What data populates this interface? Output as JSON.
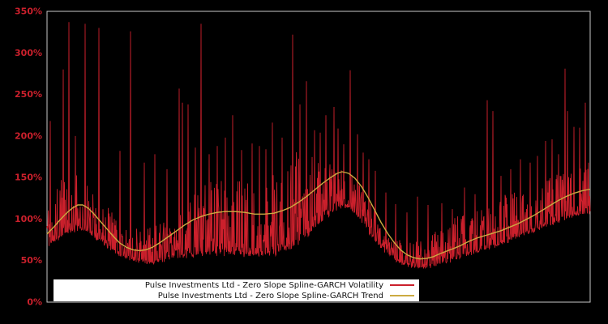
{
  "legend": {
    "background": "#ffffff",
    "text_color": "#111111",
    "entries": [
      {
        "label": "Pulse Investments Ltd - Zero Slope Spline-GARCH Volatility",
        "color": "#cb202c"
      },
      {
        "label": "Pulse Investments Ltd - Zero Slope Spline-GARCH Trend",
        "color": "#ccaa41"
      }
    ]
  },
  "chart_data": {
    "type": "line",
    "title": "",
    "xlabel": "",
    "ylabel": "",
    "background": "#000000",
    "axis_border_color": "#c8c8c8",
    "tick_label_color": "#cb202c",
    "grid": false,
    "legend_position": "lower-left-inside",
    "ylim": [
      0,
      350
    ],
    "x_range": [
      0,
      670
    ],
    "yticks": [
      {
        "label": "0%",
        "value": 0
      },
      {
        "label": "50%",
        "value": 50
      },
      {
        "label": "100%",
        "value": 100
      },
      {
        "label": "150%",
        "value": 150
      },
      {
        "label": "200%",
        "value": 200
      },
      {
        "label": "250%",
        "value": 250
      },
      {
        "label": "300%",
        "value": 300
      },
      {
        "label": "350%",
        "value": 350
      }
    ],
    "series": [
      {
        "name": "Pulse Investments Ltd - Zero Slope Spline-GARCH Volatility",
        "color": "#cb202c",
        "unit": "%",
        "line_style": "spiky-dense",
        "seed": 11,
        "base_envelope": [
          [
            0,
            66
          ],
          [
            12,
            74
          ],
          [
            25,
            82
          ],
          [
            38,
            87
          ],
          [
            48,
            85
          ],
          [
            58,
            79
          ],
          [
            68,
            71
          ],
          [
            80,
            62
          ],
          [
            92,
            55
          ],
          [
            105,
            50
          ],
          [
            118,
            47
          ],
          [
            132,
            47
          ],
          [
            146,
            50
          ],
          [
            160,
            53
          ],
          [
            175,
            55
          ],
          [
            190,
            57
          ],
          [
            205,
            57
          ],
          [
            220,
            57
          ],
          [
            235,
            56
          ],
          [
            250,
            55
          ],
          [
            262,
            55
          ],
          [
            275,
            56
          ],
          [
            288,
            59
          ],
          [
            298,
            62
          ],
          [
            308,
            68
          ],
          [
            318,
            76
          ],
          [
            328,
            86
          ],
          [
            338,
            96
          ],
          [
            348,
            104
          ],
          [
            358,
            111
          ],
          [
            366,
            114
          ],
          [
            374,
            112
          ],
          [
            382,
            105
          ],
          [
            390,
            94
          ],
          [
            398,
            82
          ],
          [
            406,
            72
          ],
          [
            414,
            63
          ],
          [
            422,
            56
          ],
          [
            430,
            50
          ],
          [
            440,
            45
          ],
          [
            450,
            42
          ],
          [
            462,
            41
          ],
          [
            474,
            43
          ],
          [
            486,
            46
          ],
          [
            498,
            49
          ],
          [
            510,
            53
          ],
          [
            522,
            57
          ],
          [
            534,
            61
          ],
          [
            546,
            64
          ],
          [
            558,
            68
          ],
          [
            570,
            73
          ],
          [
            582,
            78
          ],
          [
            594,
            83
          ],
          [
            606,
            87
          ],
          [
            618,
            91
          ],
          [
            630,
            96
          ],
          [
            642,
            100
          ],
          [
            654,
            103
          ],
          [
            662,
            105
          ],
          [
            670,
            106
          ]
        ],
        "top_envelope": [
          [
            0,
            120
          ],
          [
            10,
            140
          ],
          [
            22,
            152
          ],
          [
            34,
            155
          ],
          [
            46,
            148
          ],
          [
            58,
            136
          ],
          [
            70,
            122
          ],
          [
            82,
            108
          ],
          [
            95,
            97
          ],
          [
            108,
            90
          ],
          [
            120,
            88
          ],
          [
            132,
            92
          ],
          [
            145,
            100
          ],
          [
            158,
            112
          ],
          [
            170,
            124
          ],
          [
            182,
            136
          ],
          [
            194,
            146
          ],
          [
            206,
            154
          ],
          [
            218,
            158
          ],
          [
            230,
            155
          ],
          [
            242,
            158
          ],
          [
            254,
            152
          ],
          [
            266,
            148
          ],
          [
            278,
            155
          ],
          [
            290,
            165
          ],
          [
            300,
            178
          ],
          [
            310,
            190
          ],
          [
            320,
            182
          ],
          [
            330,
            172
          ],
          [
            342,
            166
          ],
          [
            354,
            170
          ],
          [
            366,
            168
          ],
          [
            376,
            158
          ],
          [
            386,
            144
          ],
          [
            396,
            126
          ],
          [
            406,
            108
          ],
          [
            416,
            92
          ],
          [
            426,
            82
          ],
          [
            436,
            76
          ],
          [
            448,
            72
          ],
          [
            460,
            74
          ],
          [
            472,
            80
          ],
          [
            484,
            88
          ],
          [
            496,
            97
          ],
          [
            508,
            106
          ],
          [
            518,
            103
          ],
          [
            530,
            110
          ],
          [
            542,
            118
          ],
          [
            554,
            126
          ],
          [
            566,
            133
          ],
          [
            578,
            139
          ],
          [
            590,
            132
          ],
          [
            602,
            138
          ],
          [
            614,
            146
          ],
          [
            626,
            152
          ],
          [
            638,
            158
          ],
          [
            650,
            160
          ],
          [
            660,
            162
          ],
          [
            670,
            165
          ]
        ],
        "spikes": [
          [
            4,
            218
          ],
          [
            20,
            280
          ],
          [
            27,
            337
          ],
          [
            35,
            200
          ],
          [
            47,
            335
          ],
          [
            64,
            330
          ],
          [
            90,
            182
          ],
          [
            103,
            326
          ],
          [
            120,
            168
          ],
          [
            133,
            178
          ],
          [
            148,
            160
          ],
          [
            163,
            257
          ],
          [
            167,
            240
          ],
          [
            174,
            238
          ],
          [
            183,
            186
          ],
          [
            190,
            335
          ],
          [
            200,
            178
          ],
          [
            210,
            188
          ],
          [
            220,
            198
          ],
          [
            229,
            225
          ],
          [
            240,
            183
          ],
          [
            253,
            191
          ],
          [
            262,
            188
          ],
          [
            270,
            184
          ],
          [
            278,
            216
          ],
          [
            290,
            198
          ],
          [
            303,
            322
          ],
          [
            312,
            238
          ],
          [
            320,
            266
          ],
          [
            330,
            207
          ],
          [
            337,
            204
          ],
          [
            344,
            225
          ],
          [
            354,
            235
          ],
          [
            359,
            209
          ],
          [
            366,
            190
          ],
          [
            374,
            279
          ],
          [
            383,
            202
          ],
          [
            390,
            180
          ],
          [
            397,
            172
          ],
          [
            405,
            158
          ],
          [
            418,
            132
          ],
          [
            430,
            118
          ],
          [
            444,
            108
          ],
          [
            457,
            127
          ],
          [
            470,
            117
          ],
          [
            487,
            119
          ],
          [
            500,
            112
          ],
          [
            515,
            138
          ],
          [
            528,
            130
          ],
          [
            543,
            243
          ],
          [
            550,
            230
          ],
          [
            560,
            152
          ],
          [
            572,
            160
          ],
          [
            584,
            172
          ],
          [
            596,
            168
          ],
          [
            605,
            176
          ],
          [
            615,
            194
          ],
          [
            623,
            196
          ],
          [
            631,
            178
          ],
          [
            639,
            281
          ],
          [
            642,
            230
          ],
          [
            650,
            211
          ],
          [
            657,
            210
          ],
          [
            664,
            240
          ],
          [
            668,
            168
          ]
        ]
      },
      {
        "name": "Pulse Investments Ltd - Zero Slope Spline-GARCH Trend",
        "color": "#ccaa41",
        "unit": "%",
        "line_style": "smooth",
        "points": [
          [
            0,
            82
          ],
          [
            8,
            90
          ],
          [
            16,
            99
          ],
          [
            24,
            107
          ],
          [
            31,
            113
          ],
          [
            38,
            117
          ],
          [
            44,
            117
          ],
          [
            51,
            113
          ],
          [
            58,
            106
          ],
          [
            66,
            97
          ],
          [
            74,
            88
          ],
          [
            82,
            79
          ],
          [
            90,
            71
          ],
          [
            98,
            66
          ],
          [
            106,
            63
          ],
          [
            114,
            62
          ],
          [
            122,
            63
          ],
          [
            130,
            66
          ],
          [
            140,
            72
          ],
          [
            150,
            79
          ],
          [
            160,
            86
          ],
          [
            170,
            93
          ],
          [
            180,
            99
          ],
          [
            190,
            103
          ],
          [
            200,
            106
          ],
          [
            210,
            108
          ],
          [
            220,
            109
          ],
          [
            232,
            109
          ],
          [
            244,
            108
          ],
          [
            256,
            106
          ],
          [
            268,
            106
          ],
          [
            280,
            107
          ],
          [
            290,
            110
          ],
          [
            300,
            114
          ],
          [
            310,
            120
          ],
          [
            320,
            127
          ],
          [
            330,
            135
          ],
          [
            340,
            143
          ],
          [
            350,
            150
          ],
          [
            358,
            155
          ],
          [
            364,
            157
          ],
          [
            372,
            155
          ],
          [
            380,
            149
          ],
          [
            388,
            139
          ],
          [
            396,
            126
          ],
          [
            404,
            111
          ],
          [
            412,
            96
          ],
          [
            420,
            83
          ],
          [
            428,
            72
          ],
          [
            436,
            63
          ],
          [
            444,
            57
          ],
          [
            452,
            53.5
          ],
          [
            460,
            52
          ],
          [
            468,
            52.5
          ],
          [
            476,
            54.5
          ],
          [
            484,
            58
          ],
          [
            492,
            61
          ],
          [
            500,
            64
          ],
          [
            510,
            68
          ],
          [
            520,
            73
          ],
          [
            530,
            77
          ],
          [
            540,
            80
          ],
          [
            550,
            83
          ],
          [
            560,
            86
          ],
          [
            570,
            90
          ],
          [
            580,
            94
          ],
          [
            590,
            99
          ],
          [
            600,
            104
          ],
          [
            610,
            110
          ],
          [
            620,
            116
          ],
          [
            630,
            122
          ],
          [
            640,
            127
          ],
          [
            650,
            131
          ],
          [
            660,
            134
          ],
          [
            670,
            136
          ]
        ]
      }
    ]
  }
}
